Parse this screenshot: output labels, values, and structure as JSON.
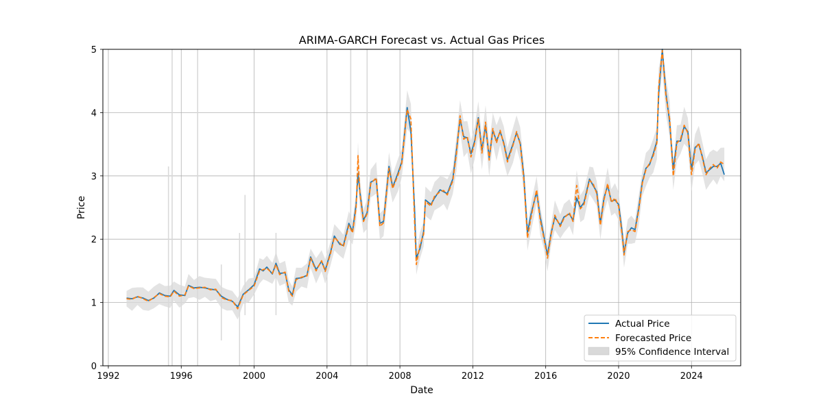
{
  "chart_data": {
    "type": "line",
    "title": "ARIMA-GARCH Forecast vs. Actual Gas Prices",
    "xlabel": "Date",
    "ylabel": "Price",
    "xlim": [
      1991.7,
      2026.7
    ],
    "ylim": [
      0,
      5
    ],
    "x_ticks": [
      1992,
      1996,
      2000,
      2004,
      2008,
      2012,
      2016,
      2020,
      2024
    ],
    "y_ticks": [
      0,
      1,
      2,
      3,
      4,
      5
    ],
    "grid": true,
    "legend_position": "lower-right",
    "colors": {
      "actual": "#1f77b4",
      "forecast": "#ff7f0e",
      "ci": "#d9d9d9",
      "grid": "#b0b0b0"
    },
    "series": [
      {
        "name": "Actual Price",
        "style": "solid",
        "points": [
          [
            1993.0,
            1.07
          ],
          [
            1993.3,
            1.06
          ],
          [
            1993.6,
            1.09
          ],
          [
            1993.9,
            1.07
          ],
          [
            1994.2,
            1.03
          ],
          [
            1994.5,
            1.07
          ],
          [
            1994.8,
            1.15
          ],
          [
            1995.1,
            1.11
          ],
          [
            1995.4,
            1.1
          ],
          [
            1995.6,
            1.19
          ],
          [
            1995.9,
            1.12
          ],
          [
            1996.2,
            1.11
          ],
          [
            1996.4,
            1.27
          ],
          [
            1996.7,
            1.23
          ],
          [
            1997.0,
            1.24
          ],
          [
            1997.3,
            1.23
          ],
          [
            1997.6,
            1.21
          ],
          [
            1997.9,
            1.2
          ],
          [
            1998.2,
            1.1
          ],
          [
            1998.5,
            1.05
          ],
          [
            1998.8,
            1.02
          ],
          [
            1999.1,
            0.93
          ],
          [
            1999.4,
            1.13
          ],
          [
            1999.7,
            1.2
          ],
          [
            2000.0,
            1.28
          ],
          [
            2000.3,
            1.53
          ],
          [
            2000.5,
            1.5
          ],
          [
            2000.7,
            1.56
          ],
          [
            2001.0,
            1.45
          ],
          [
            2001.2,
            1.62
          ],
          [
            2001.4,
            1.46
          ],
          [
            2001.7,
            1.47
          ],
          [
            2001.9,
            1.2
          ],
          [
            2002.1,
            1.12
          ],
          [
            2002.3,
            1.38
          ],
          [
            2002.6,
            1.39
          ],
          [
            2002.9,
            1.43
          ],
          [
            2003.1,
            1.72
          ],
          [
            2003.4,
            1.52
          ],
          [
            2003.7,
            1.65
          ],
          [
            2003.9,
            1.51
          ],
          [
            2004.2,
            1.8
          ],
          [
            2004.4,
            2.05
          ],
          [
            2004.7,
            1.92
          ],
          [
            2004.9,
            1.9
          ],
          [
            2005.2,
            2.25
          ],
          [
            2005.4,
            2.12
          ],
          [
            2005.6,
            2.55
          ],
          [
            2005.7,
            3.04
          ],
          [
            2005.8,
            2.75
          ],
          [
            2006.0,
            2.3
          ],
          [
            2006.2,
            2.42
          ],
          [
            2006.4,
            2.9
          ],
          [
            2006.7,
            2.95
          ],
          [
            2006.9,
            2.25
          ],
          [
            2007.1,
            2.28
          ],
          [
            2007.4,
            3.15
          ],
          [
            2007.6,
            2.82
          ],
          [
            2007.9,
            3.05
          ],
          [
            2008.1,
            3.22
          ],
          [
            2008.4,
            4.08
          ],
          [
            2008.6,
            3.7
          ],
          [
            2008.8,
            2.5
          ],
          [
            2008.9,
            1.7
          ],
          [
            2009.1,
            1.85
          ],
          [
            2009.3,
            2.12
          ],
          [
            2009.4,
            2.62
          ],
          [
            2009.7,
            2.55
          ],
          [
            2009.9,
            2.65
          ],
          [
            2010.2,
            2.78
          ],
          [
            2010.4,
            2.75
          ],
          [
            2010.6,
            2.72
          ],
          [
            2010.9,
            2.95
          ],
          [
            2011.1,
            3.4
          ],
          [
            2011.3,
            3.9
          ],
          [
            2011.5,
            3.62
          ],
          [
            2011.7,
            3.6
          ],
          [
            2011.9,
            3.35
          ],
          [
            2012.1,
            3.55
          ],
          [
            2012.3,
            3.92
          ],
          [
            2012.5,
            3.4
          ],
          [
            2012.7,
            3.8
          ],
          [
            2012.9,
            3.28
          ],
          [
            2013.1,
            3.72
          ],
          [
            2013.3,
            3.55
          ],
          [
            2013.5,
            3.7
          ],
          [
            2013.7,
            3.52
          ],
          [
            2013.9,
            3.25
          ],
          [
            2014.2,
            3.5
          ],
          [
            2014.4,
            3.68
          ],
          [
            2014.6,
            3.52
          ],
          [
            2014.8,
            3.0
          ],
          [
            2015.0,
            2.1
          ],
          [
            2015.2,
            2.4
          ],
          [
            2015.5,
            2.75
          ],
          [
            2015.7,
            2.35
          ],
          [
            2015.9,
            2.05
          ],
          [
            2016.1,
            1.75
          ],
          [
            2016.3,
            2.1
          ],
          [
            2016.5,
            2.35
          ],
          [
            2016.8,
            2.22
          ],
          [
            2017.0,
            2.35
          ],
          [
            2017.3,
            2.4
          ],
          [
            2017.5,
            2.3
          ],
          [
            2017.7,
            2.65
          ],
          [
            2017.9,
            2.5
          ],
          [
            2018.1,
            2.58
          ],
          [
            2018.4,
            2.95
          ],
          [
            2018.6,
            2.85
          ],
          [
            2018.8,
            2.75
          ],
          [
            2019.0,
            2.25
          ],
          [
            2019.2,
            2.65
          ],
          [
            2019.4,
            2.85
          ],
          [
            2019.6,
            2.6
          ],
          [
            2019.8,
            2.62
          ],
          [
            2020.0,
            2.55
          ],
          [
            2020.2,
            2.1
          ],
          [
            2020.3,
            1.78
          ],
          [
            2020.5,
            2.1
          ],
          [
            2020.7,
            2.18
          ],
          [
            2020.9,
            2.15
          ],
          [
            2021.1,
            2.48
          ],
          [
            2021.3,
            2.9
          ],
          [
            2021.5,
            3.12
          ],
          [
            2021.7,
            3.18
          ],
          [
            2021.9,
            3.35
          ],
          [
            2022.1,
            3.55
          ],
          [
            2022.2,
            4.3
          ],
          [
            2022.4,
            5.0
          ],
          [
            2022.6,
            4.3
          ],
          [
            2022.8,
            3.85
          ],
          [
            2023.0,
            3.1
          ],
          [
            2023.2,
            3.55
          ],
          [
            2023.4,
            3.55
          ],
          [
            2023.6,
            3.78
          ],
          [
            2023.8,
            3.7
          ],
          [
            2024.0,
            3.1
          ],
          [
            2024.2,
            3.45
          ],
          [
            2024.4,
            3.5
          ],
          [
            2024.6,
            3.3
          ],
          [
            2024.8,
            3.05
          ],
          [
            2025.0,
            3.1
          ],
          [
            2025.2,
            3.15
          ],
          [
            2025.4,
            3.15
          ],
          [
            2025.6,
            3.2
          ],
          [
            2025.8,
            3.02
          ]
        ]
      },
      {
        "name": "Forecasted Price",
        "style": "dashed",
        "points": [
          [
            1993.0,
            1.06
          ],
          [
            1993.3,
            1.05
          ],
          [
            1993.6,
            1.1
          ],
          [
            1993.9,
            1.06
          ],
          [
            1994.2,
            1.02
          ],
          [
            1994.5,
            1.08
          ],
          [
            1994.8,
            1.14
          ],
          [
            1995.1,
            1.1
          ],
          [
            1995.4,
            1.09
          ],
          [
            1995.6,
            1.18
          ],
          [
            1995.9,
            1.1
          ],
          [
            1996.2,
            1.12
          ],
          [
            1996.4,
            1.26
          ],
          [
            1996.7,
            1.22
          ],
          [
            1997.0,
            1.23
          ],
          [
            1997.3,
            1.24
          ],
          [
            1997.6,
            1.2
          ],
          [
            1997.9,
            1.21
          ],
          [
            1998.2,
            1.08
          ],
          [
            1998.5,
            1.04
          ],
          [
            1998.8,
            1.03
          ],
          [
            1999.1,
            0.9
          ],
          [
            1999.4,
            1.12
          ],
          [
            1999.7,
            1.19
          ],
          [
            2000.0,
            1.26
          ],
          [
            2000.3,
            1.5
          ],
          [
            2000.5,
            1.52
          ],
          [
            2000.7,
            1.54
          ],
          [
            2001.0,
            1.46
          ],
          [
            2001.2,
            1.6
          ],
          [
            2001.4,
            1.44
          ],
          [
            2001.7,
            1.48
          ],
          [
            2001.9,
            1.18
          ],
          [
            2002.1,
            1.1
          ],
          [
            2002.3,
            1.36
          ],
          [
            2002.6,
            1.4
          ],
          [
            2002.9,
            1.42
          ],
          [
            2003.1,
            1.7
          ],
          [
            2003.4,
            1.5
          ],
          [
            2003.7,
            1.66
          ],
          [
            2003.9,
            1.49
          ],
          [
            2004.2,
            1.78
          ],
          [
            2004.4,
            2.03
          ],
          [
            2004.7,
            1.94
          ],
          [
            2004.9,
            1.88
          ],
          [
            2005.2,
            2.22
          ],
          [
            2005.4,
            2.1
          ],
          [
            2005.6,
            2.5
          ],
          [
            2005.7,
            3.32
          ],
          [
            2005.8,
            2.72
          ],
          [
            2006.0,
            2.28
          ],
          [
            2006.2,
            2.4
          ],
          [
            2006.4,
            2.88
          ],
          [
            2006.7,
            2.97
          ],
          [
            2006.9,
            2.2
          ],
          [
            2007.1,
            2.26
          ],
          [
            2007.4,
            3.12
          ],
          [
            2007.6,
            2.8
          ],
          [
            2007.9,
            3.02
          ],
          [
            2008.1,
            3.2
          ],
          [
            2008.4,
            4.05
          ],
          [
            2008.6,
            3.9
          ],
          [
            2008.8,
            2.3
          ],
          [
            2008.9,
            1.6
          ],
          [
            2009.1,
            1.9
          ],
          [
            2009.3,
            2.08
          ],
          [
            2009.4,
            2.6
          ],
          [
            2009.7,
            2.52
          ],
          [
            2009.9,
            2.68
          ],
          [
            2010.2,
            2.75
          ],
          [
            2010.4,
            2.77
          ],
          [
            2010.6,
            2.7
          ],
          [
            2010.9,
            2.92
          ],
          [
            2011.1,
            3.35
          ],
          [
            2011.3,
            3.95
          ],
          [
            2011.5,
            3.58
          ],
          [
            2011.7,
            3.62
          ],
          [
            2011.9,
            3.3
          ],
          [
            2012.1,
            3.52
          ],
          [
            2012.3,
            3.9
          ],
          [
            2012.5,
            3.36
          ],
          [
            2012.7,
            3.85
          ],
          [
            2012.9,
            3.25
          ],
          [
            2013.1,
            3.75
          ],
          [
            2013.3,
            3.52
          ],
          [
            2013.5,
            3.72
          ],
          [
            2013.7,
            3.5
          ],
          [
            2013.9,
            3.22
          ],
          [
            2014.2,
            3.48
          ],
          [
            2014.4,
            3.7
          ],
          [
            2014.6,
            3.5
          ],
          [
            2014.8,
            2.95
          ],
          [
            2015.0,
            2.02
          ],
          [
            2015.2,
            2.35
          ],
          [
            2015.5,
            2.78
          ],
          [
            2015.7,
            2.3
          ],
          [
            2015.9,
            2.02
          ],
          [
            2016.1,
            1.7
          ],
          [
            2016.3,
            2.08
          ],
          [
            2016.5,
            2.38
          ],
          [
            2016.8,
            2.2
          ],
          [
            2017.0,
            2.33
          ],
          [
            2017.3,
            2.42
          ],
          [
            2017.5,
            2.28
          ],
          [
            2017.7,
            2.85
          ],
          [
            2017.9,
            2.48
          ],
          [
            2018.1,
            2.55
          ],
          [
            2018.4,
            2.93
          ],
          [
            2018.6,
            2.88
          ],
          [
            2018.8,
            2.72
          ],
          [
            2019.0,
            2.22
          ],
          [
            2019.2,
            2.62
          ],
          [
            2019.4,
            2.88
          ],
          [
            2019.6,
            2.58
          ],
          [
            2019.8,
            2.65
          ],
          [
            2020.0,
            2.52
          ],
          [
            2020.2,
            2.05
          ],
          [
            2020.3,
            1.75
          ],
          [
            2020.5,
            2.12
          ],
          [
            2020.7,
            2.15
          ],
          [
            2020.9,
            2.12
          ],
          [
            2021.1,
            2.45
          ],
          [
            2021.3,
            2.88
          ],
          [
            2021.5,
            3.1
          ],
          [
            2021.7,
            3.2
          ],
          [
            2021.9,
            3.32
          ],
          [
            2022.1,
            3.52
          ],
          [
            2022.2,
            4.4
          ],
          [
            2022.4,
            4.98
          ],
          [
            2022.6,
            4.25
          ],
          [
            2022.8,
            3.9
          ],
          [
            2023.0,
            3.0
          ],
          [
            2023.2,
            3.52
          ],
          [
            2023.4,
            3.58
          ],
          [
            2023.6,
            3.8
          ],
          [
            2023.8,
            3.68
          ],
          [
            2024.0,
            3.02
          ],
          [
            2024.2,
            3.42
          ],
          [
            2024.4,
            3.52
          ],
          [
            2024.6,
            3.28
          ],
          [
            2024.8,
            3.02
          ],
          [
            2025.0,
            3.12
          ],
          [
            2025.2,
            3.18
          ],
          [
            2025.4,
            3.12
          ],
          [
            2025.6,
            3.22
          ],
          [
            2025.8,
            3.18
          ]
        ]
      },
      {
        "name": "95% Confidence Interval",
        "style": "band",
        "spikes": [
          [
            1995.3,
            0.0,
            3.15
          ],
          [
            1995.5,
            0.0,
            5.0
          ],
          [
            1996.0,
            0.0,
            2.2
          ],
          [
            1996.9,
            0.0,
            5.0
          ],
          [
            1998.2,
            0.4,
            1.6
          ],
          [
            1999.2,
            0.0,
            2.1
          ],
          [
            1999.5,
            0.8,
            2.7
          ],
          [
            2001.2,
            0.8,
            2.1
          ],
          [
            2005.3,
            0.0,
            5.0
          ],
          [
            2006.2,
            0.0,
            5.0
          ]
        ]
      }
    ]
  }
}
